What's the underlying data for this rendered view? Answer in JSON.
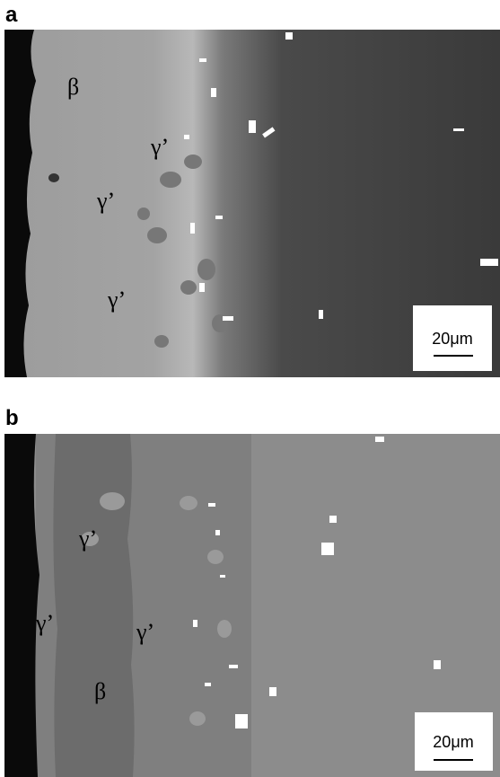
{
  "panels": [
    {
      "label": "a",
      "annotations": [
        "β",
        "γ’",
        "γ’",
        "γ’"
      ],
      "scale_bar": "20μm"
    },
    {
      "label": "b",
      "annotations": [
        "γ’",
        "γ’",
        "γ’",
        "β"
      ],
      "scale_bar": "20μm"
    }
  ]
}
